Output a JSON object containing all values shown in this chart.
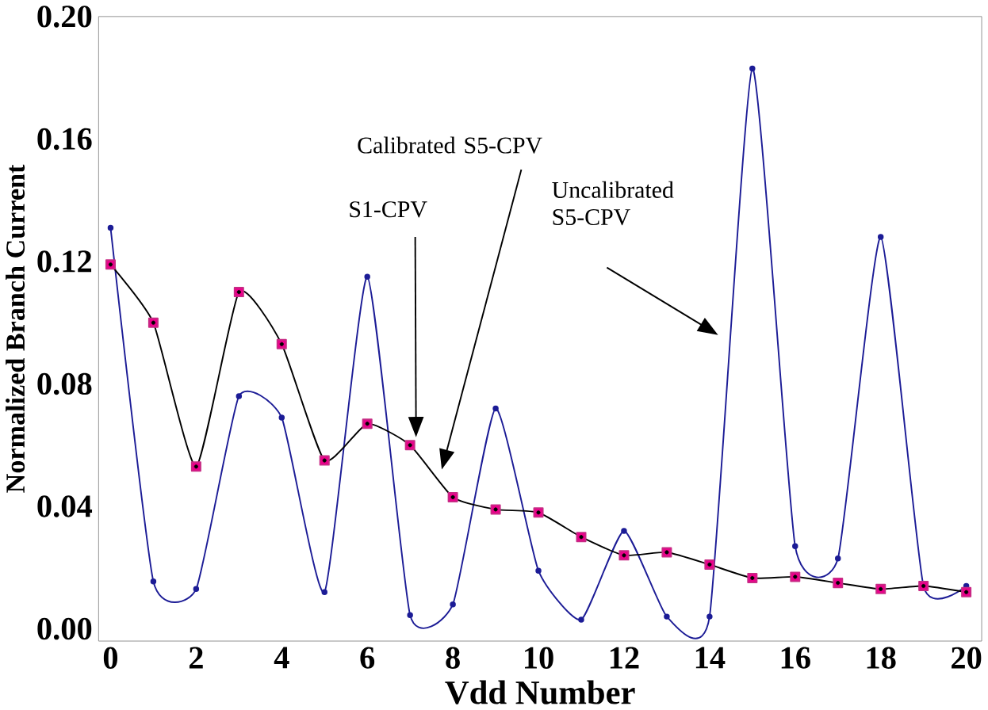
{
  "chart_data": {
    "type": "line",
    "xlabel": "Vdd Number",
    "ylabel": "Normalized Branch Current",
    "x": [
      0,
      1,
      2,
      3,
      4,
      5,
      6,
      7,
      8,
      9,
      10,
      11,
      12,
      13,
      14,
      15,
      16,
      17,
      18,
      19,
      20
    ],
    "series": [
      {
        "color": "#1c1c96",
        "marker": "circle",
        "values": [
          0.131,
          0.0155,
          0.013,
          0.076,
          0.069,
          0.012,
          0.115,
          0.0045,
          0.008,
          0.072,
          0.019,
          0.003,
          0.032,
          0.004,
          0.004,
          0.183,
          0.027,
          0.023,
          0.128,
          0.014,
          0.014
        ]
      },
      {
        "color": "#000000",
        "marker": "square",
        "values": [
          0.119,
          0.1,
          0.053,
          0.11,
          0.093,
          0.055,
          0.067,
          0.06,
          0.043,
          0.039,
          0.038,
          0.03,
          0.024,
          0.025,
          0.021,
          0.0166,
          0.017,
          0.015,
          0.013,
          0.014,
          0.012
        ]
      }
    ],
    "xlim": [
      -0.28,
      20.36
    ],
    "ylim": [
      -0.004,
      0.2
    ],
    "xticks": [
      0,
      2,
      4,
      6,
      8,
      10,
      12,
      14,
      16,
      18,
      20
    ],
    "yticks": [
      {
        "value": 0,
        "label": "0.00"
      },
      {
        "value": 0.04,
        "label": "0.04"
      },
      {
        "value": 0.08,
        "label": "0.08"
      },
      {
        "value": 0.12,
        "label": "0.12"
      },
      {
        "value": 0.16,
        "label": "0.16"
      },
      {
        "value": 0.2,
        "label": "0.20"
      }
    ],
    "grid": false,
    "annotations": [
      "Calibrated S5-CPV",
      "S1-CPV",
      "Uncalibrated S5-CPV"
    ]
  }
}
